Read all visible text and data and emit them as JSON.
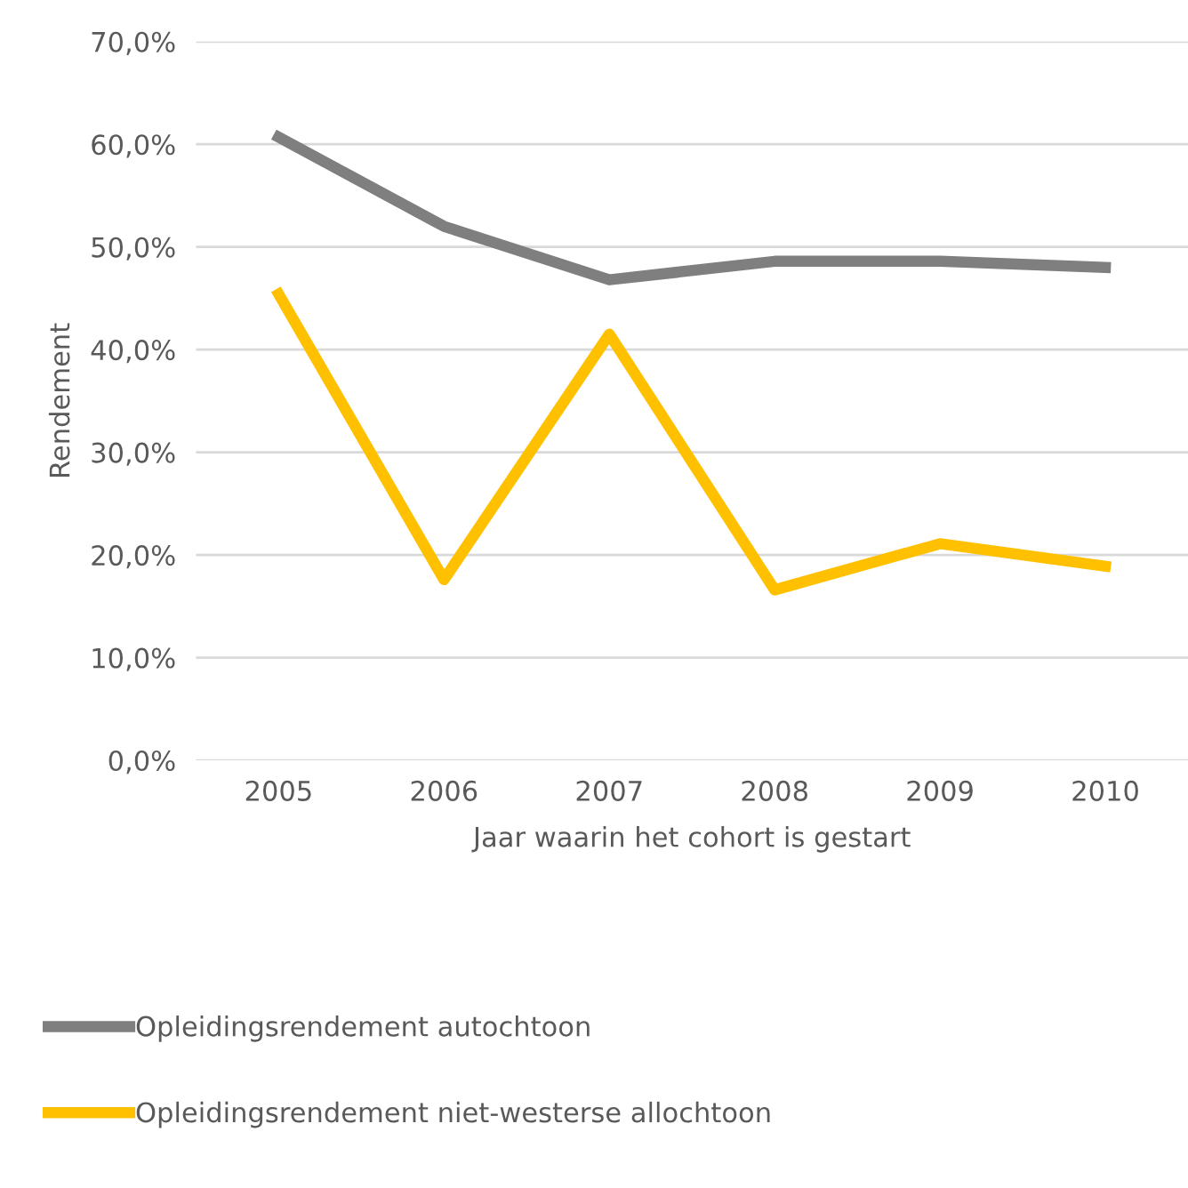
{
  "chart_data": {
    "type": "line",
    "xlabel": "Jaar waarin het cohort is gestart",
    "ylabel": "Rendement",
    "categories": [
      "2005",
      "2006",
      "2007",
      "2008",
      "2009",
      "2010"
    ],
    "series": [
      {
        "name": "Opleidingsrendement autochtoon",
        "color": "#7f7f7f",
        "values": [
          60.7,
          52.0,
          46.8,
          48.6,
          48.6,
          48.0
        ]
      },
      {
        "name": "Opleidingsrendement niet-westerse allochtoon",
        "color": "#ffc000",
        "values": [
          45.4,
          17.6,
          41.5,
          16.6,
          21.1,
          18.9
        ]
      }
    ],
    "ylim": [
      0,
      70
    ],
    "yticks": [
      {
        "value": 0,
        "label": "0,0%"
      },
      {
        "value": 10,
        "label": "10,0%"
      },
      {
        "value": 20,
        "label": "20,0%"
      },
      {
        "value": 30,
        "label": "30,0%"
      },
      {
        "value": 40,
        "label": "40,0%"
      },
      {
        "value": 50,
        "label": "50,0%"
      },
      {
        "value": 60,
        "label": "60,0%"
      },
      {
        "value": 70,
        "label": "70,0%"
      }
    ],
    "grid": "y",
    "legend": "bottom",
    "marker": "none",
    "line_style": "solid"
  }
}
